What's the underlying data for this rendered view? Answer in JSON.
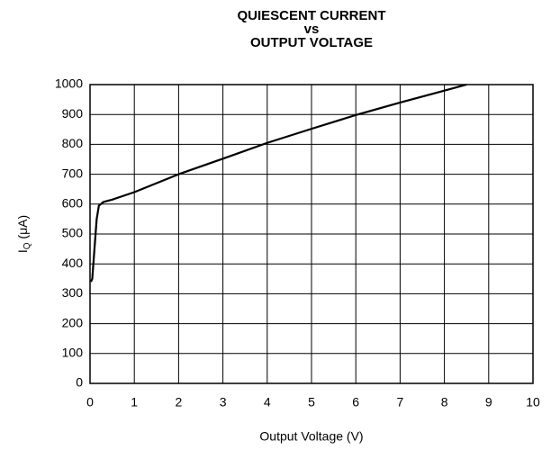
{
  "chart_data": {
    "type": "line",
    "title": [
      "QUIESCENT CURRENT",
      "vs",
      "OUTPUT VOLTAGE"
    ],
    "xlabel": "Output Voltage (V)",
    "ylabel": {
      "main": "I",
      "sub": "Q",
      "rest": " (μA)"
    },
    "x": [
      0.02,
      0.05,
      0.1,
      0.15,
      0.2,
      0.3,
      0.5,
      1,
      2,
      3,
      4,
      5,
      6,
      7,
      8,
      8.5
    ],
    "series": [
      {
        "name": "IQ",
        "color": "#000000",
        "values": [
          340,
          350,
          450,
          550,
          595,
          607,
          615,
          640,
          700,
          752,
          805,
          852,
          898,
          940,
          980,
          1000
        ]
      }
    ],
    "xlim": [
      0,
      10
    ],
    "xticks": [
      0,
      1,
      2,
      3,
      4,
      5,
      6,
      7,
      8,
      9,
      10
    ],
    "ylim": [
      0,
      1000
    ],
    "yticks": [
      0,
      100,
      200,
      300,
      400,
      500,
      600,
      700,
      800,
      900,
      1000
    ],
    "grid": true
  }
}
